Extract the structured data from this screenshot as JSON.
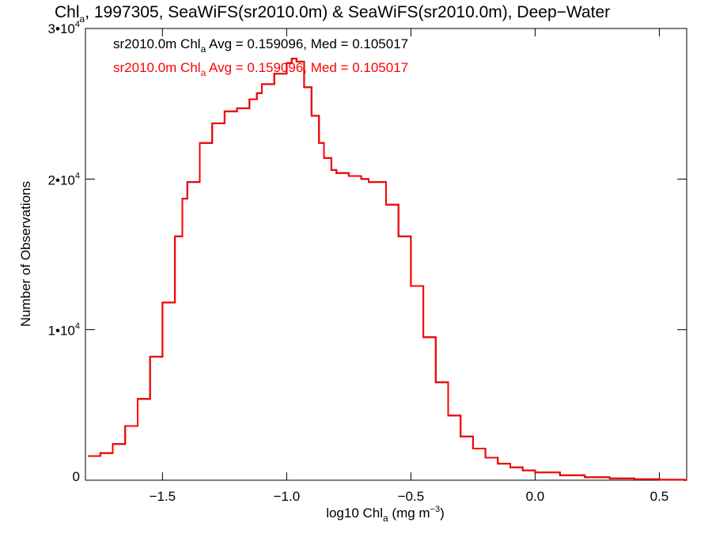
{
  "chart_data": {
    "type": "line",
    "title_main": "Chl",
    "title_sub": "a",
    "title_rest": ", 1997305, SeaWiFS(sr2010.0m) & SeaWiFS(sr2010.0m), Deep−Water",
    "xlabel_main": "log10 Chl",
    "xlabel_sub": "a",
    "xlabel_rest": " (mg m",
    "xlabel_sup": "−3",
    "xlabel_end": ")",
    "ylabel": "Number of Observations",
    "xlim": [
      -1.81,
      0.61
    ],
    "ylim": [
      0,
      30000
    ],
    "x_ticks": [
      {
        "value": -1.5,
        "label": "−1.5"
      },
      {
        "value": -1.0,
        "label": "−1.0"
      },
      {
        "value": -0.5,
        "label": "−0.5"
      },
      {
        "value": 0.0,
        "label": "0.0"
      },
      {
        "value": 0.5,
        "label": "0.5"
      }
    ],
    "y_ticks": [
      {
        "value": 0,
        "base": "0",
        "exp": ""
      },
      {
        "value": 10000,
        "base": "1•10",
        "exp": "4"
      },
      {
        "value": 20000,
        "base": "2•10",
        "exp": "4"
      },
      {
        "value": 30000,
        "base": "3•10",
        "exp": "4"
      }
    ],
    "stats": [
      {
        "color": "#000000",
        "prefix": "sr2010.0m Chl",
        "sub": "a",
        "suffix": " Avg = 0.159096, Med = 0.105017"
      },
      {
        "color": "#ff0000",
        "prefix": "sr2010.0m Chl",
        "sub": "a",
        "suffix": " Avg = 0.159096, Med = 0.105017"
      }
    ],
    "series": [
      {
        "color": "#000000",
        "values_ref": "histogram"
      },
      {
        "color": "#ff0000",
        "values_ref": "histogram"
      }
    ],
    "histogram": {
      "x": [
        -1.8,
        -1.75,
        -1.7,
        -1.65,
        -1.6,
        -1.55,
        -1.5,
        -1.45,
        -1.42,
        -1.4,
        -1.35,
        -1.3,
        -1.25,
        -1.2,
        -1.15,
        -1.12,
        -1.1,
        -1.05,
        -1.0,
        -0.98,
        -0.96,
        -0.93,
        -0.9,
        -0.87,
        -0.85,
        -0.82,
        -0.8,
        -0.75,
        -0.7,
        -0.67,
        -0.65,
        -0.6,
        -0.55,
        -0.5,
        -0.45,
        -0.4,
        -0.35,
        -0.3,
        -0.25,
        -0.2,
        -0.15,
        -0.1,
        -0.05,
        0.0,
        0.1,
        0.2,
        0.3,
        0.4,
        0.5,
        0.6
      ],
      "y": [
        1600,
        1800,
        2400,
        3600,
        5400,
        8200,
        11800,
        16200,
        18700,
        19800,
        22400,
        23700,
        24500,
        24700,
        25300,
        25700,
        26300,
        27000,
        27700,
        28000,
        27800,
        26100,
        24200,
        22400,
        21400,
        20600,
        20400,
        20200,
        20000,
        19800,
        19800,
        18300,
        16200,
        12900,
        9500,
        6500,
        4300,
        2900,
        2100,
        1500,
        1100,
        850,
        650,
        520,
        330,
        200,
        120,
        70,
        30,
        10
      ]
    }
  }
}
